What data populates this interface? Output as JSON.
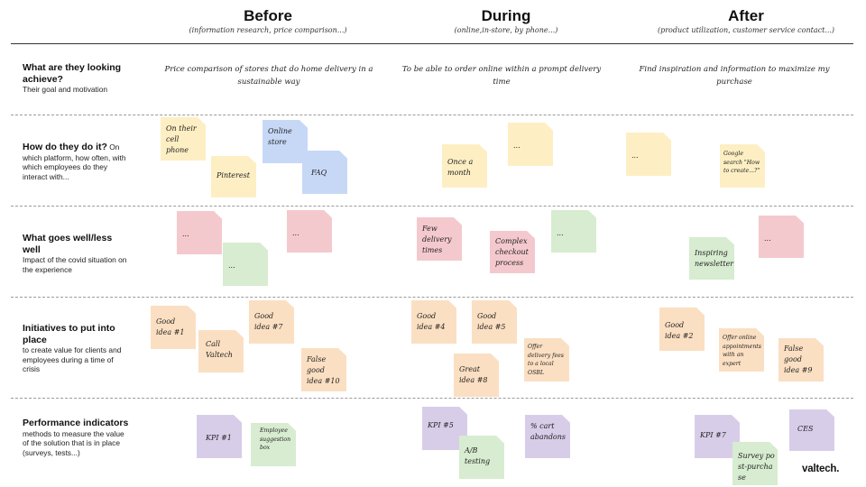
{
  "columns": [
    {
      "title": "Before",
      "subtitle": "(information research, price comparison...)"
    },
    {
      "title": "During",
      "subtitle": "(online,in-store, by phone...)"
    },
    {
      "title": "After",
      "subtitle": "(product utilization, customer service contact...)"
    }
  ],
  "rows": [
    {
      "title": "What are they looking achieve?",
      "desc": "Their goal and motivation"
    },
    {
      "title": "How do they do it?",
      "desc": "On which platform, how often, with which employees do they interact with..."
    },
    {
      "title": "What goes well/less well",
      "desc": "Impact of the covid situation on the experience"
    },
    {
      "title": "Initiatives to put into place",
      "desc": "to create value for clients and employees during a time of crisis"
    },
    {
      "title": "Performance indicators",
      "desc": "methods to measure the value of the solution that is in place (surveys, tests...)"
    }
  ],
  "goals": [
    "Price comparison of stores that do home delivery in a sustainable way",
    "To be able to order online within a prompt delivery time",
    "Find inspiration and information to maximize my purchase"
  ],
  "notes": [
    {
      "text": "On their cell phone",
      "color": "yellow"
    },
    {
      "text": "Online store",
      "color": "blue"
    },
    {
      "text": "Pinterest",
      "color": "yellow"
    },
    {
      "text": "FAQ",
      "color": "blue"
    },
    {
      "text": "...",
      "color": "yellow"
    },
    {
      "text": "Once a month",
      "color": "yellow"
    },
    {
      "text": "...",
      "color": "yellow"
    },
    {
      "text": "Google search \"How to create...?\"",
      "color": "yellow"
    },
    {
      "text": "...",
      "color": "red"
    },
    {
      "text": "...",
      "color": "red"
    },
    {
      "text": "...",
      "color": "green"
    },
    {
      "text": "Few delivery times",
      "color": "red"
    },
    {
      "text": "Complex checkout process",
      "color": "red"
    },
    {
      "text": "...",
      "color": "green"
    },
    {
      "text": "Inspiring newsletter",
      "color": "green"
    },
    {
      "text": "...",
      "color": "red"
    },
    {
      "text": "Good idea #1",
      "color": "orange"
    },
    {
      "text": "Good idea #7",
      "color": "orange"
    },
    {
      "text": "Call Valtech",
      "color": "orange"
    },
    {
      "text": "False good idea #10",
      "color": "orange"
    },
    {
      "text": "Good idea #4",
      "color": "orange"
    },
    {
      "text": "Good idea #5",
      "color": "orange"
    },
    {
      "text": "Offer delivery fees to a local OSBL",
      "color": "orange"
    },
    {
      "text": "Great idea #8",
      "color": "orange"
    },
    {
      "text": "Good idea #2",
      "color": "orange"
    },
    {
      "text": "Offer online appointments with an expert",
      "color": "orange"
    },
    {
      "text": "False good idea #9",
      "color": "orange"
    },
    {
      "text": "KPI #1",
      "color": "purple"
    },
    {
      "text": "Employee suggestion box",
      "color": "green"
    },
    {
      "text": "KPI #5",
      "color": "purple"
    },
    {
      "text": "% cart abandons",
      "color": "purple"
    },
    {
      "text": "A/B testing",
      "color": "green"
    },
    {
      "text": "KPI #7",
      "color": "purple"
    },
    {
      "text": "CES",
      "color": "purple"
    },
    {
      "text": "Survey post-purchase",
      "color": "green"
    }
  ],
  "logo": "valtech."
}
